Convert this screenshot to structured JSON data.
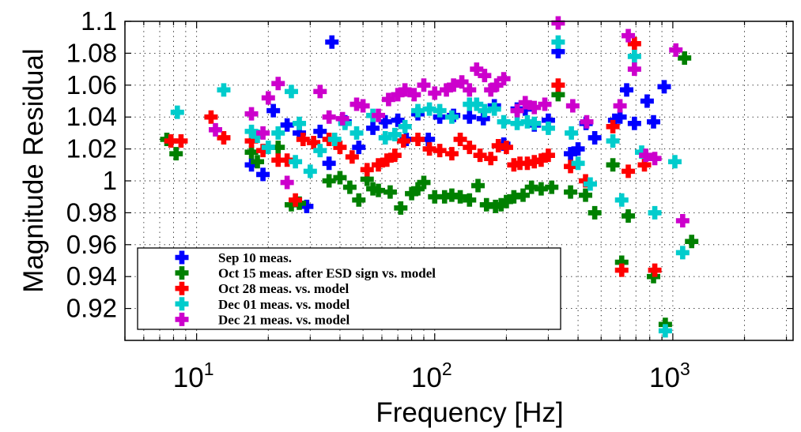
{
  "chart_data": {
    "type": "scatter",
    "title": "",
    "xlabel": "Frequency [Hz]",
    "ylabel": "Magnitude Residual",
    "x_scale": "log",
    "xlim": [
      5,
      3200
    ],
    "ylim": [
      0.9,
      1.1
    ],
    "x_ticks": [
      10,
      100,
      1000
    ],
    "x_tick_labels": [
      {
        "base": "10",
        "exp": "1"
      },
      {
        "base": "10",
        "exp": "2"
      },
      {
        "base": "10",
        "exp": "3"
      }
    ],
    "y_ticks": [
      0.92,
      0.94,
      0.96,
      0.98,
      1.0,
      1.02,
      1.04,
      1.06,
      1.08,
      1.1
    ],
    "y_tick_labels": [
      "0.92",
      "0.94",
      "0.96",
      "0.98",
      "1",
      "1.02",
      "1.04",
      "1.06",
      "1.08",
      "1.1"
    ],
    "grid": true,
    "grid_style": "dotted",
    "legend_position": "lower-left",
    "marker": "plus",
    "series": [
      {
        "name": "Sep 10 meas.",
        "color": "#0000ff",
        "points": [
          [
            17,
            1.01
          ],
          [
            19,
            1.004
          ],
          [
            21,
            1.044
          ],
          [
            24,
            1.035
          ],
          [
            27,
            1.03
          ],
          [
            29,
            0.984
          ],
          [
            33,
            1.031
          ],
          [
            36,
            1.011
          ],
          [
            37,
            1.087
          ],
          [
            42,
            1.037
          ],
          [
            48,
            1.021
          ],
          [
            55,
            1.033
          ],
          [
            62,
            1.037
          ],
          [
            70,
            1.038
          ],
          [
            76,
            1.026
          ],
          [
            85,
            1.042
          ],
          [
            94,
            1.026
          ],
          [
            105,
            1.04
          ],
          [
            120,
            1.041
          ],
          [
            140,
            1.04
          ],
          [
            160,
            1.039
          ],
          [
            178,
            1.047
          ],
          [
            195,
            1.023
          ],
          [
            222,
            1.045
          ],
          [
            240,
            1.045
          ],
          [
            262,
            1.035
          ],
          [
            300,
            1.038
          ],
          [
            330,
            1.081
          ],
          [
            372,
            1.017
          ],
          [
            400,
            1.02
          ],
          [
            432,
            1.036
          ],
          [
            470,
            1.027
          ],
          [
            570,
            1.038
          ],
          [
            600,
            1.04
          ],
          [
            640,
            1.057
          ],
          [
            690,
            1.036
          ],
          [
            780,
            1.05
          ],
          [
            830,
            1.037
          ],
          [
            920,
            1.059
          ]
        ]
      },
      {
        "name": "Oct 15 meas. after ESD sign vs. model",
        "color": "#008000",
        "points": [
          [
            7.5,
            1.026
          ],
          [
            8.2,
            1.017
          ],
          [
            17,
            1.018
          ],
          [
            18,
            1.012
          ],
          [
            22,
            1.021
          ],
          [
            25,
            0.985
          ],
          [
            27,
            0.986
          ],
          [
            36,
            1.0
          ],
          [
            40,
            1.002
          ],
          [
            44,
            0.996
          ],
          [
            48,
            0.988
          ],
          [
            52,
            1.001
          ],
          [
            55,
            0.995
          ],
          [
            58,
            0.994
          ],
          [
            65,
            0.993
          ],
          [
            72,
            0.983
          ],
          [
            80,
            0.992
          ],
          [
            85,
            0.995
          ],
          [
            90,
            0.999
          ],
          [
            100,
            0.99
          ],
          [
            110,
            0.99
          ],
          [
            118,
            0.991
          ],
          [
            128,
            0.99
          ],
          [
            140,
            0.988
          ],
          [
            152,
            0.997
          ],
          [
            165,
            0.985
          ],
          [
            180,
            0.984
          ],
          [
            190,
            0.985
          ],
          [
            200,
            0.987
          ],
          [
            215,
            0.99
          ],
          [
            235,
            0.991
          ],
          [
            255,
            0.996
          ],
          [
            280,
            0.995
          ],
          [
            310,
            0.996
          ],
          [
            330,
            1.054
          ],
          [
            372,
            0.993
          ],
          [
            430,
            0.991
          ],
          [
            470,
            0.98
          ],
          [
            560,
            1.01
          ],
          [
            610,
            0.949
          ],
          [
            650,
            0.978
          ],
          [
            830,
            0.94
          ],
          [
            930,
            0.91
          ],
          [
            1120,
            1.077
          ],
          [
            1200,
            0.962
          ]
        ]
      },
      {
        "name": "Oct 28 meas. vs. model",
        "color": "#ff0000",
        "points": [
          [
            7.8,
            1.025
          ],
          [
            8.6,
            1.025
          ],
          [
            11.5,
            1.04
          ],
          [
            13,
            1.027
          ],
          [
            17,
            1.025
          ],
          [
            19,
            1.019
          ],
          [
            22,
            1.013
          ],
          [
            24,
            1.013
          ],
          [
            26,
            0.988
          ],
          [
            28,
            1.026
          ],
          [
            31,
            1.024
          ],
          [
            36,
            1.026
          ],
          [
            40,
            1.021
          ],
          [
            45,
            1.015
          ],
          [
            52,
            1.007
          ],
          [
            58,
            1.01
          ],
          [
            63,
            1.013
          ],
          [
            68,
            1.016
          ],
          [
            74,
            1.025
          ],
          [
            85,
            1.026
          ],
          [
            95,
            1.02
          ],
          [
            105,
            1.019
          ],
          [
            118,
            1.017
          ],
          [
            128,
            1.026
          ],
          [
            140,
            1.021
          ],
          [
            155,
            1.016
          ],
          [
            172,
            1.014
          ],
          [
            185,
            1.022
          ],
          [
            200,
            1.021
          ],
          [
            215,
            1.01
          ],
          [
            228,
            1.011
          ],
          [
            245,
            1.011
          ],
          [
            262,
            1.012
          ],
          [
            280,
            1.013
          ],
          [
            300,
            1.016
          ],
          [
            330,
            1.06
          ],
          [
            372,
            1.009
          ],
          [
            430,
            1.0
          ],
          [
            560,
            1.034
          ],
          [
            610,
            0.944
          ],
          [
            650,
            1.006
          ],
          [
            690,
            1.086
          ],
          [
            760,
            1.01
          ],
          [
            840,
            0.944
          ]
        ]
      },
      {
        "name": "Dec 01 meas. vs. model",
        "color": "#00cccc",
        "points": [
          [
            8.3,
            1.043
          ],
          [
            13,
            1.057
          ],
          [
            17,
            1.031
          ],
          [
            18,
            1.028
          ],
          [
            20,
            1.021
          ],
          [
            22,
            1.03
          ],
          [
            25,
            1.056
          ],
          [
            26,
            1.012
          ],
          [
            27,
            1.036
          ],
          [
            30,
            1.006
          ],
          [
            33,
            1.019
          ],
          [
            38,
            1.026
          ],
          [
            42,
            1.036
          ],
          [
            47,
            1.03
          ],
          [
            55,
            1.041
          ],
          [
            62,
            1.027
          ],
          [
            68,
            1.029
          ],
          [
            75,
            1.034
          ],
          [
            85,
            1.044
          ],
          [
            95,
            1.045
          ],
          [
            105,
            1.044
          ],
          [
            118,
            1.04
          ],
          [
            140,
            1.048
          ],
          [
            150,
            1.048
          ],
          [
            162,
            1.044
          ],
          [
            178,
            1.045
          ],
          [
            195,
            1.037
          ],
          [
            222,
            1.036
          ],
          [
            245,
            1.037
          ],
          [
            262,
            1.036
          ],
          [
            300,
            1.033
          ],
          [
            330,
            1.087
          ],
          [
            375,
            1.03
          ],
          [
            400,
            1.011
          ],
          [
            450,
            0.998
          ],
          [
            560,
            1.025
          ],
          [
            610,
            0.988
          ],
          [
            690,
            1.078
          ],
          [
            740,
            1.018
          ],
          [
            840,
            0.98
          ],
          [
            930,
            0.906
          ],
          [
            1020,
            1.012
          ],
          [
            1100,
            0.955
          ]
        ]
      },
      {
        "name": "Dec 21 meas. vs. model",
        "color": "#cc00cc",
        "points": [
          [
            12,
            1.032
          ],
          [
            17,
            1.042
          ],
          [
            19,
            1.03
          ],
          [
            20,
            1.052
          ],
          [
            22,
            1.061
          ],
          [
            24,
            0.999
          ],
          [
            33,
            1.056
          ],
          [
            36,
            1.04
          ],
          [
            41,
            1.039
          ],
          [
            47,
            1.048
          ],
          [
            50,
            1.047
          ],
          [
            58,
            1.041
          ],
          [
            64,
            1.051
          ],
          [
            70,
            1.054
          ],
          [
            75,
            1.057
          ],
          [
            82,
            1.054
          ],
          [
            90,
            1.06
          ],
          [
            100,
            1.055
          ],
          [
            112,
            1.057
          ],
          [
            120,
            1.06
          ],
          [
            130,
            1.062
          ],
          [
            140,
            1.057
          ],
          [
            150,
            1.07
          ],
          [
            162,
            1.066
          ],
          [
            172,
            1.057
          ],
          [
            182,
            1.06
          ],
          [
            195,
            1.064
          ],
          [
            222,
            1.044
          ],
          [
            240,
            1.049
          ],
          [
            262,
            1.046
          ],
          [
            290,
            1.048
          ],
          [
            330,
            1.099
          ],
          [
            380,
            1.047
          ],
          [
            435,
            1.037
          ],
          [
            600,
            1.047
          ],
          [
            650,
            1.091
          ],
          [
            690,
            1.07
          ],
          [
            770,
            1.016
          ],
          [
            840,
            1.014
          ],
          [
            1030,
            1.082
          ],
          [
            1100,
            0.975
          ]
        ]
      }
    ]
  }
}
